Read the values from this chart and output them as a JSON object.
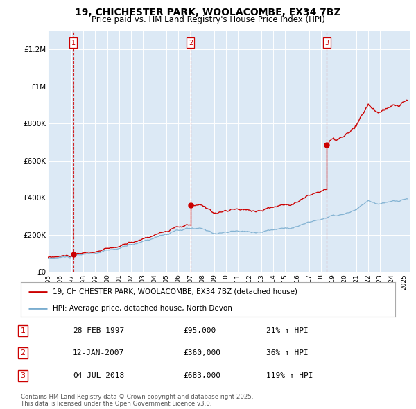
{
  "title": "19, CHICHESTER PARK, WOOLACOMBE, EX34 7BZ",
  "subtitle": "Price paid vs. HM Land Registry's House Price Index (HPI)",
  "legend_property": "19, CHICHESTER PARK, WOOLACOMBE, EX34 7BZ (detached house)",
  "legend_hpi": "HPI: Average price, detached house, North Devon",
  "footnote": "Contains HM Land Registry data © Crown copyright and database right 2025.\nThis data is licensed under the Open Government Licence v3.0.",
  "plot_bg_color": "#dce9f5",
  "ylim": [
    0,
    1300000
  ],
  "yticks": [
    0,
    200000,
    400000,
    600000,
    800000,
    1000000,
    1200000
  ],
  "ytick_labels": [
    "£0",
    "£200K",
    "£400K",
    "£600K",
    "£800K",
    "£1M",
    "£1.2M"
  ],
  "transactions": [
    {
      "num": 1,
      "date": "28-FEB-1997",
      "price": 95000,
      "hpi_pct": "21% ↑ HPI",
      "year": 1997.15
    },
    {
      "num": 2,
      "date": "12-JAN-2007",
      "price": 360000,
      "hpi_pct": "36% ↑ HPI",
      "year": 2007.03
    },
    {
      "num": 3,
      "date": "04-JUL-2018",
      "price": 683000,
      "hpi_pct": "119% ↑ HPI",
      "year": 2018.5
    }
  ],
  "property_line_color": "#cc0000",
  "hpi_line_color": "#7aadcf",
  "dashed_color": "#cc0000",
  "xmin": 1995.0,
  "xmax": 2025.5,
  "xtick_years": [
    1995,
    1996,
    1997,
    1998,
    1999,
    2000,
    2001,
    2002,
    2003,
    2004,
    2005,
    2006,
    2007,
    2008,
    2009,
    2010,
    2011,
    2012,
    2013,
    2014,
    2015,
    2016,
    2017,
    2018,
    2019,
    2020,
    2021,
    2022,
    2023,
    2024,
    2025
  ]
}
